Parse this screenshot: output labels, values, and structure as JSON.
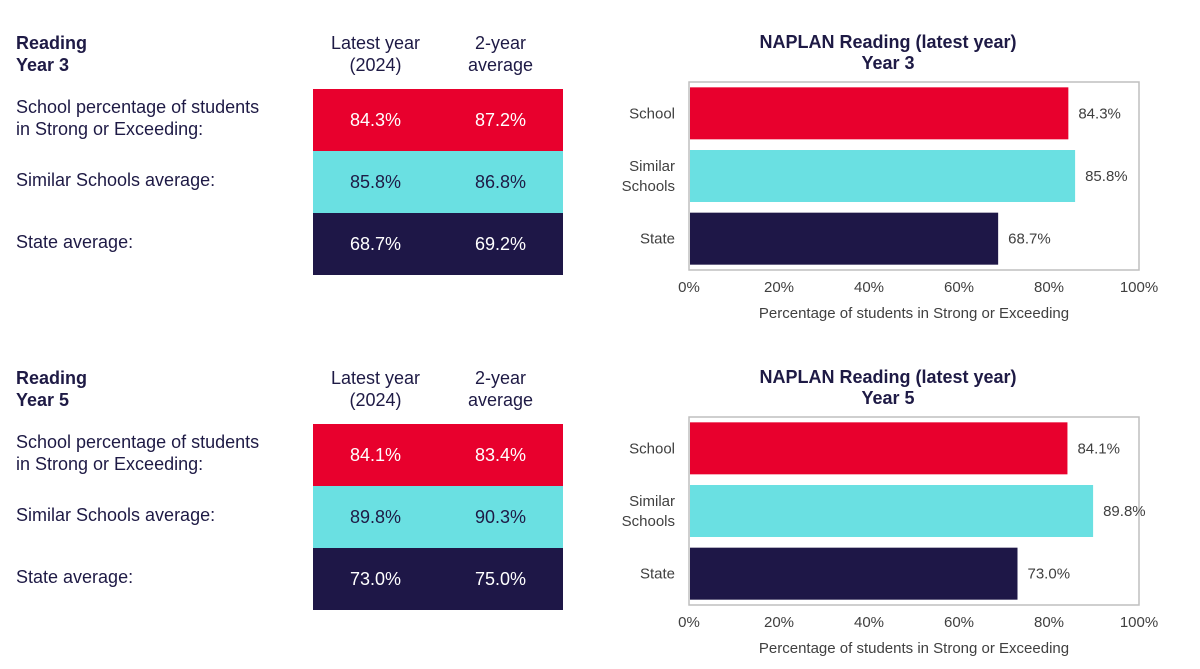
{
  "sections": [
    {
      "table": {
        "title_line1": "Reading",
        "title_line2": "Year 3",
        "col1_line1": "Latest year",
        "col1_line2": "(2024)",
        "col2_line1": "2-year",
        "col2_line2": "average",
        "rows": [
          {
            "label_line1": "School percentage of students",
            "label_line2": "in Strong or Exceeding:",
            "latest": "84.3%",
            "avg": "87.2%"
          },
          {
            "label_line1": "Similar Schools average:",
            "label_line2": "",
            "latest": "85.8%",
            "avg": "86.8%"
          },
          {
            "label_line1": "State average:",
            "label_line2": "",
            "latest": "68.7%",
            "avg": "69.2%"
          }
        ]
      }
    },
    {
      "table": {
        "title_line1": "Reading",
        "title_line2": "Year 5",
        "col1_line1": "Latest year",
        "col1_line2": "(2024)",
        "col2_line1": "2-year",
        "col2_line2": "average",
        "rows": [
          {
            "label_line1": "School percentage of students",
            "label_line2": "in Strong or Exceeding:",
            "latest": "84.1%",
            "avg": "83.4%"
          },
          {
            "label_line1": "Similar Schools average:",
            "label_line2": "",
            "latest": "89.8%",
            "avg": "90.3%"
          },
          {
            "label_line1": "State average:",
            "label_line2": "",
            "latest": "73.0%",
            "avg": "75.0%"
          }
        ]
      }
    }
  ],
  "colors": {
    "school": "#e8002d",
    "similar": "#6ae0e2",
    "state": "#1e1747"
  },
  "chart_data": [
    {
      "type": "bar",
      "orientation": "horizontal",
      "title_line1": "NAPLAN Reading (latest year)",
      "title_line2": "Year 3",
      "categories": [
        [
          "School"
        ],
        [
          "Similar",
          "Schools"
        ],
        [
          "State"
        ]
      ],
      "values": [
        84.3,
        85.8,
        68.7
      ],
      "value_labels": [
        "84.3%",
        "85.8%",
        "68.7%"
      ],
      "xlabel": "Percentage of students in Strong or Exceeding",
      "xlim": [
        0,
        100
      ],
      "xticks": [
        "0%",
        "20%",
        "40%",
        "60%",
        "80%",
        "100%"
      ],
      "grid": false
    },
    {
      "type": "bar",
      "orientation": "horizontal",
      "title_line1": "NAPLAN Reading (latest year)",
      "title_line2": "Year 5",
      "categories": [
        [
          "School"
        ],
        [
          "Similar",
          "Schools"
        ],
        [
          "State"
        ]
      ],
      "values": [
        84.1,
        89.8,
        73.0
      ],
      "value_labels": [
        "84.1%",
        "89.8%",
        "73.0%"
      ],
      "xlabel": "Percentage of students in Strong or Exceeding",
      "xlim": [
        0,
        100
      ],
      "xticks": [
        "0%",
        "20%",
        "40%",
        "60%",
        "80%",
        "100%"
      ],
      "grid": false
    }
  ]
}
